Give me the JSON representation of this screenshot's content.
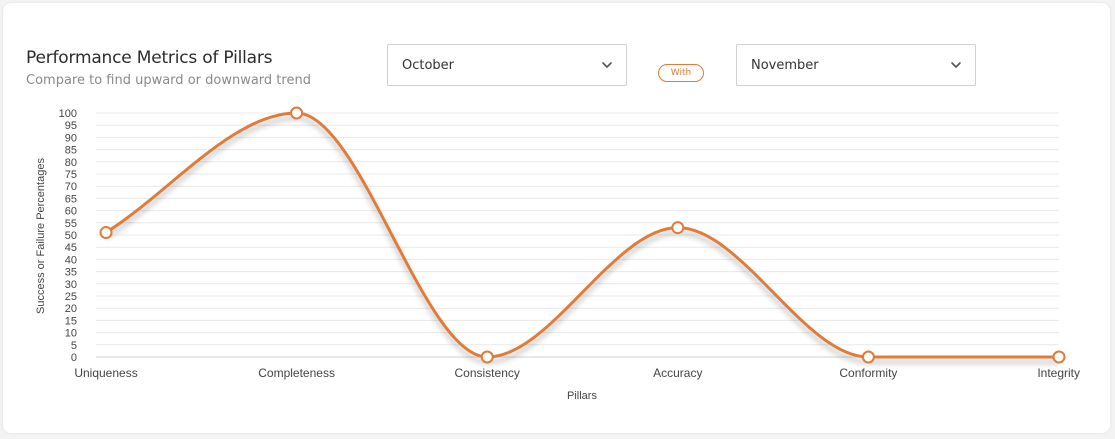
{
  "header": {
    "title": "Performance Metrics of Pillars",
    "subtitle": "Compare to find upward or downward trend"
  },
  "controls": {
    "month_a": "October",
    "with_label": "With",
    "month_b": "November"
  },
  "colors": {
    "accent": "#e07b39",
    "grid": "#e8e8e8"
  },
  "icons": {
    "dropdown": "chevron-down-icon"
  },
  "chart_data": {
    "type": "line",
    "categories": [
      "Uniqueness",
      "Completeness",
      "Consistency",
      "Accuracy",
      "Conformity",
      "Integrity"
    ],
    "series": [
      {
        "values": [
          51,
          100,
          0,
          53,
          0,
          0
        ]
      }
    ],
    "xlabel": "Pillars",
    "ylabel": "Success or Failure Percentages",
    "ylim": [
      0,
      100
    ],
    "yticks": [
      0,
      5,
      10,
      15,
      20,
      25,
      30,
      35,
      40,
      45,
      50,
      55,
      60,
      65,
      70,
      75,
      80,
      85,
      90,
      95,
      100
    ],
    "grid": true,
    "smooth": true
  }
}
